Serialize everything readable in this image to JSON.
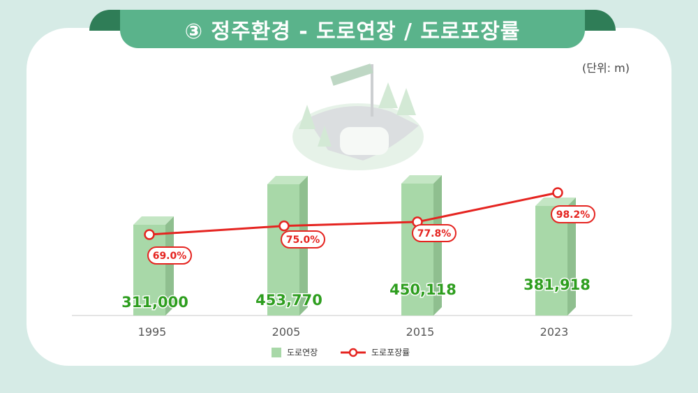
{
  "header": {
    "title": "③ 정주환경 - 도로연장 / 도로포장률"
  },
  "unit_label": "(단위: m)",
  "chart_data": {
    "type": "bar",
    "categories": [
      "1995",
      "2005",
      "2015",
      "2023"
    ],
    "series": [
      {
        "name": "도로연장",
        "type": "bar",
        "values": [
          311000,
          453770,
          450118,
          381918
        ],
        "labels": [
          "311,000",
          "453,770",
          "450,118",
          "381,918"
        ]
      },
      {
        "name": "도로포장률",
        "type": "line",
        "values": [
          69.0,
          75.0,
          77.8,
          98.2
        ],
        "labels": [
          "69.0%",
          "75.0%",
          "77.8%",
          "98.2%"
        ]
      }
    ],
    "unit": "m",
    "colors": {
      "bar": "#a8d8a8",
      "bar_side": "#8fbf8f",
      "line": "#e52420",
      "label_green": "#2e9e1f"
    }
  },
  "legend": {
    "bar_label": "도로연장",
    "line_label": "도로포장률"
  }
}
